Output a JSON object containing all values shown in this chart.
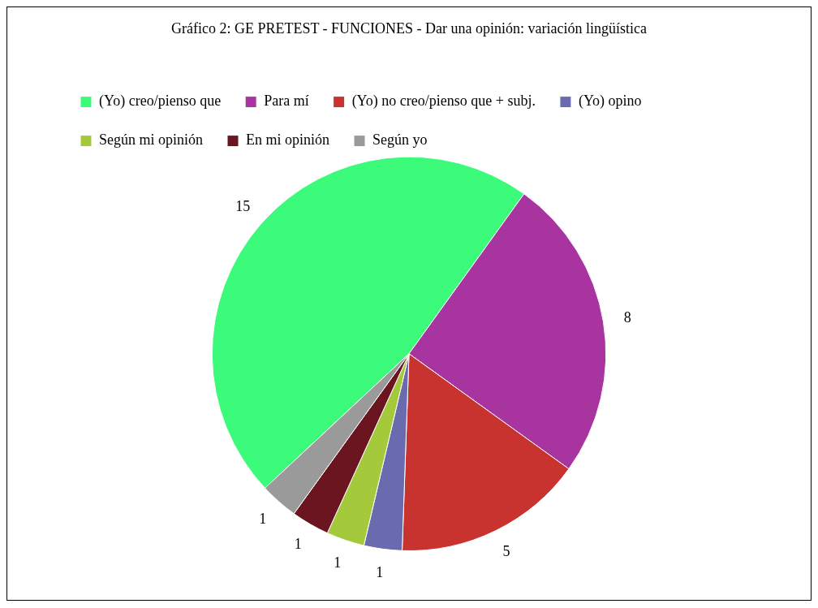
{
  "chart_data": {
    "type": "pie",
    "title": "Gráfico 2: GE PRETEST - FUNCIONES - Dar una opinión: variación lingüística",
    "categories": [
      "(Yo) creo/pienso que",
      "Para mí",
      "(Yo) no creo/pienso que + subj.",
      "(Yo) opino",
      "Según mi opinión",
      "En mi opinión",
      "Según yo"
    ],
    "values": [
      15,
      8,
      5,
      1,
      1,
      1,
      1
    ],
    "colors": [
      "#3dfb7a",
      "#a8359f",
      "#c8322f",
      "#6a6aae",
      "#a4c93a",
      "#6b1520",
      "#9a9a9a"
    ],
    "legend": "top",
    "data_labels": true
  }
}
